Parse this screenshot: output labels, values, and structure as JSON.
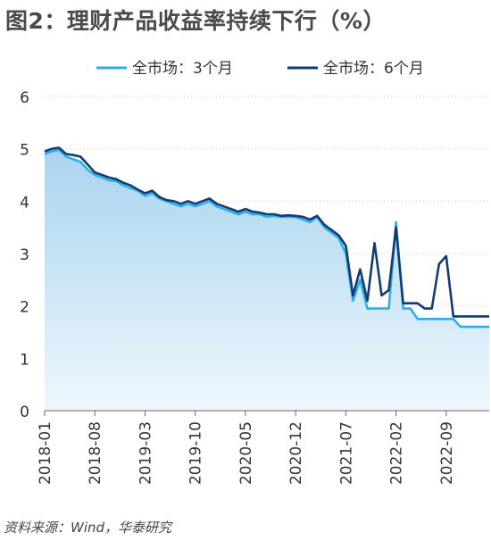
{
  "title": "图2：理财产品收益率持续下行（%）",
  "source": "资料来源：Wind，华泰研究",
  "colors": {
    "area_top": "#a9d4ee",
    "area_bottom": "#eef7fc",
    "series_3m": "#2eaee6",
    "series_6m": "#123a75",
    "grid": "#cccccc",
    "axis": "#666666"
  },
  "chart_data": {
    "type": "line",
    "title": "",
    "xlabel": "",
    "ylabel": "",
    "ylim": [
      0,
      6
    ],
    "xlim": [
      "2018-01",
      "2023-03"
    ],
    "yticks": [
      "0",
      "1",
      "2",
      "3",
      "4",
      "5",
      "6"
    ],
    "xticks": [
      "2018-01",
      "2018-08",
      "2019-03",
      "2019-10",
      "2020-05",
      "2020-12",
      "2021-07",
      "2022-02",
      "2022-09"
    ],
    "grid": "horizontal dotted",
    "legend_position": "top-center",
    "area_fill": true,
    "series": [
      {
        "name": "全市场：3个月",
        "color": "#2eaee6",
        "x": [
          "2018-01",
          "2018-02",
          "2018-03",
          "2018-04",
          "2018-05",
          "2018-06",
          "2018-07",
          "2018-08",
          "2018-09",
          "2018-10",
          "2018-11",
          "2018-12",
          "2019-01",
          "2019-02",
          "2019-03",
          "2019-04",
          "2019-05",
          "2019-06",
          "2019-07",
          "2019-08",
          "2019-09",
          "2019-10",
          "2019-11",
          "2019-12",
          "2020-01",
          "2020-02",
          "2020-03",
          "2020-04",
          "2020-05",
          "2020-06",
          "2020-07",
          "2020-08",
          "2020-09",
          "2020-10",
          "2020-11",
          "2020-12",
          "2021-01",
          "2021-02",
          "2021-03",
          "2021-04",
          "2021-05",
          "2021-06",
          "2021-07",
          "2021-08",
          "2021-09",
          "2021-10",
          "2021-11",
          "2021-12",
          "2022-01",
          "2022-02",
          "2022-03",
          "2022-04",
          "2022-05",
          "2022-06",
          "2022-07",
          "2022-08",
          "2022-09",
          "2022-10",
          "2022-11",
          "2022-12",
          "2023-01",
          "2023-02",
          "2023-03"
        ],
        "values": [
          4.9,
          4.95,
          4.98,
          4.85,
          4.8,
          4.75,
          4.6,
          4.5,
          4.45,
          4.4,
          4.38,
          4.3,
          4.25,
          4.2,
          4.1,
          4.15,
          4.05,
          4.0,
          3.95,
          3.9,
          3.95,
          3.9,
          3.95,
          4.0,
          3.9,
          3.85,
          3.8,
          3.75,
          3.8,
          3.75,
          3.75,
          3.7,
          3.72,
          3.7,
          3.7,
          3.7,
          3.65,
          3.6,
          3.7,
          3.5,
          3.4,
          3.3,
          3.0,
          2.1,
          2.5,
          1.95,
          1.95,
          1.95,
          1.95,
          3.6,
          1.95,
          1.95,
          1.75,
          1.75,
          1.75,
          1.75,
          1.75,
          1.75,
          1.6,
          1.6,
          1.6,
          1.6,
          1.6
        ]
      },
      {
        "name": "全市场：6个月",
        "color": "#123a75",
        "x": [
          "2018-01",
          "2018-02",
          "2018-03",
          "2018-04",
          "2018-05",
          "2018-06",
          "2018-07",
          "2018-08",
          "2018-09",
          "2018-10",
          "2018-11",
          "2018-12",
          "2019-01",
          "2019-02",
          "2019-03",
          "2019-04",
          "2019-05",
          "2019-06",
          "2019-07",
          "2019-08",
          "2019-09",
          "2019-10",
          "2019-11",
          "2019-12",
          "2020-01",
          "2020-02",
          "2020-03",
          "2020-04",
          "2020-05",
          "2020-06",
          "2020-07",
          "2020-08",
          "2020-09",
          "2020-10",
          "2020-11",
          "2020-12",
          "2021-01",
          "2021-02",
          "2021-03",
          "2021-04",
          "2021-05",
          "2021-06",
          "2021-07",
          "2021-08",
          "2021-09",
          "2021-10",
          "2021-11",
          "2021-12",
          "2022-01",
          "2022-02",
          "2022-03",
          "2022-04",
          "2022-05",
          "2022-06",
          "2022-07",
          "2022-08",
          "2022-09",
          "2022-10",
          "2022-11",
          "2022-12",
          "2023-01",
          "2023-02",
          "2023-03"
        ],
        "values": [
          4.95,
          5.0,
          5.02,
          4.9,
          4.88,
          4.85,
          4.7,
          4.55,
          4.5,
          4.45,
          4.42,
          4.35,
          4.3,
          4.22,
          4.15,
          4.2,
          4.08,
          4.02,
          4.0,
          3.95,
          4.0,
          3.95,
          4.0,
          4.05,
          3.95,
          3.9,
          3.85,
          3.8,
          3.85,
          3.8,
          3.78,
          3.75,
          3.75,
          3.72,
          3.73,
          3.72,
          3.7,
          3.65,
          3.72,
          3.55,
          3.45,
          3.35,
          3.15,
          2.2,
          2.7,
          2.1,
          3.2,
          2.2,
          2.3,
          3.5,
          2.05,
          2.05,
          2.05,
          1.95,
          1.95,
          2.8,
          2.95,
          1.8,
          1.8,
          1.8,
          1.8,
          1.8,
          1.8
        ]
      }
    ]
  }
}
